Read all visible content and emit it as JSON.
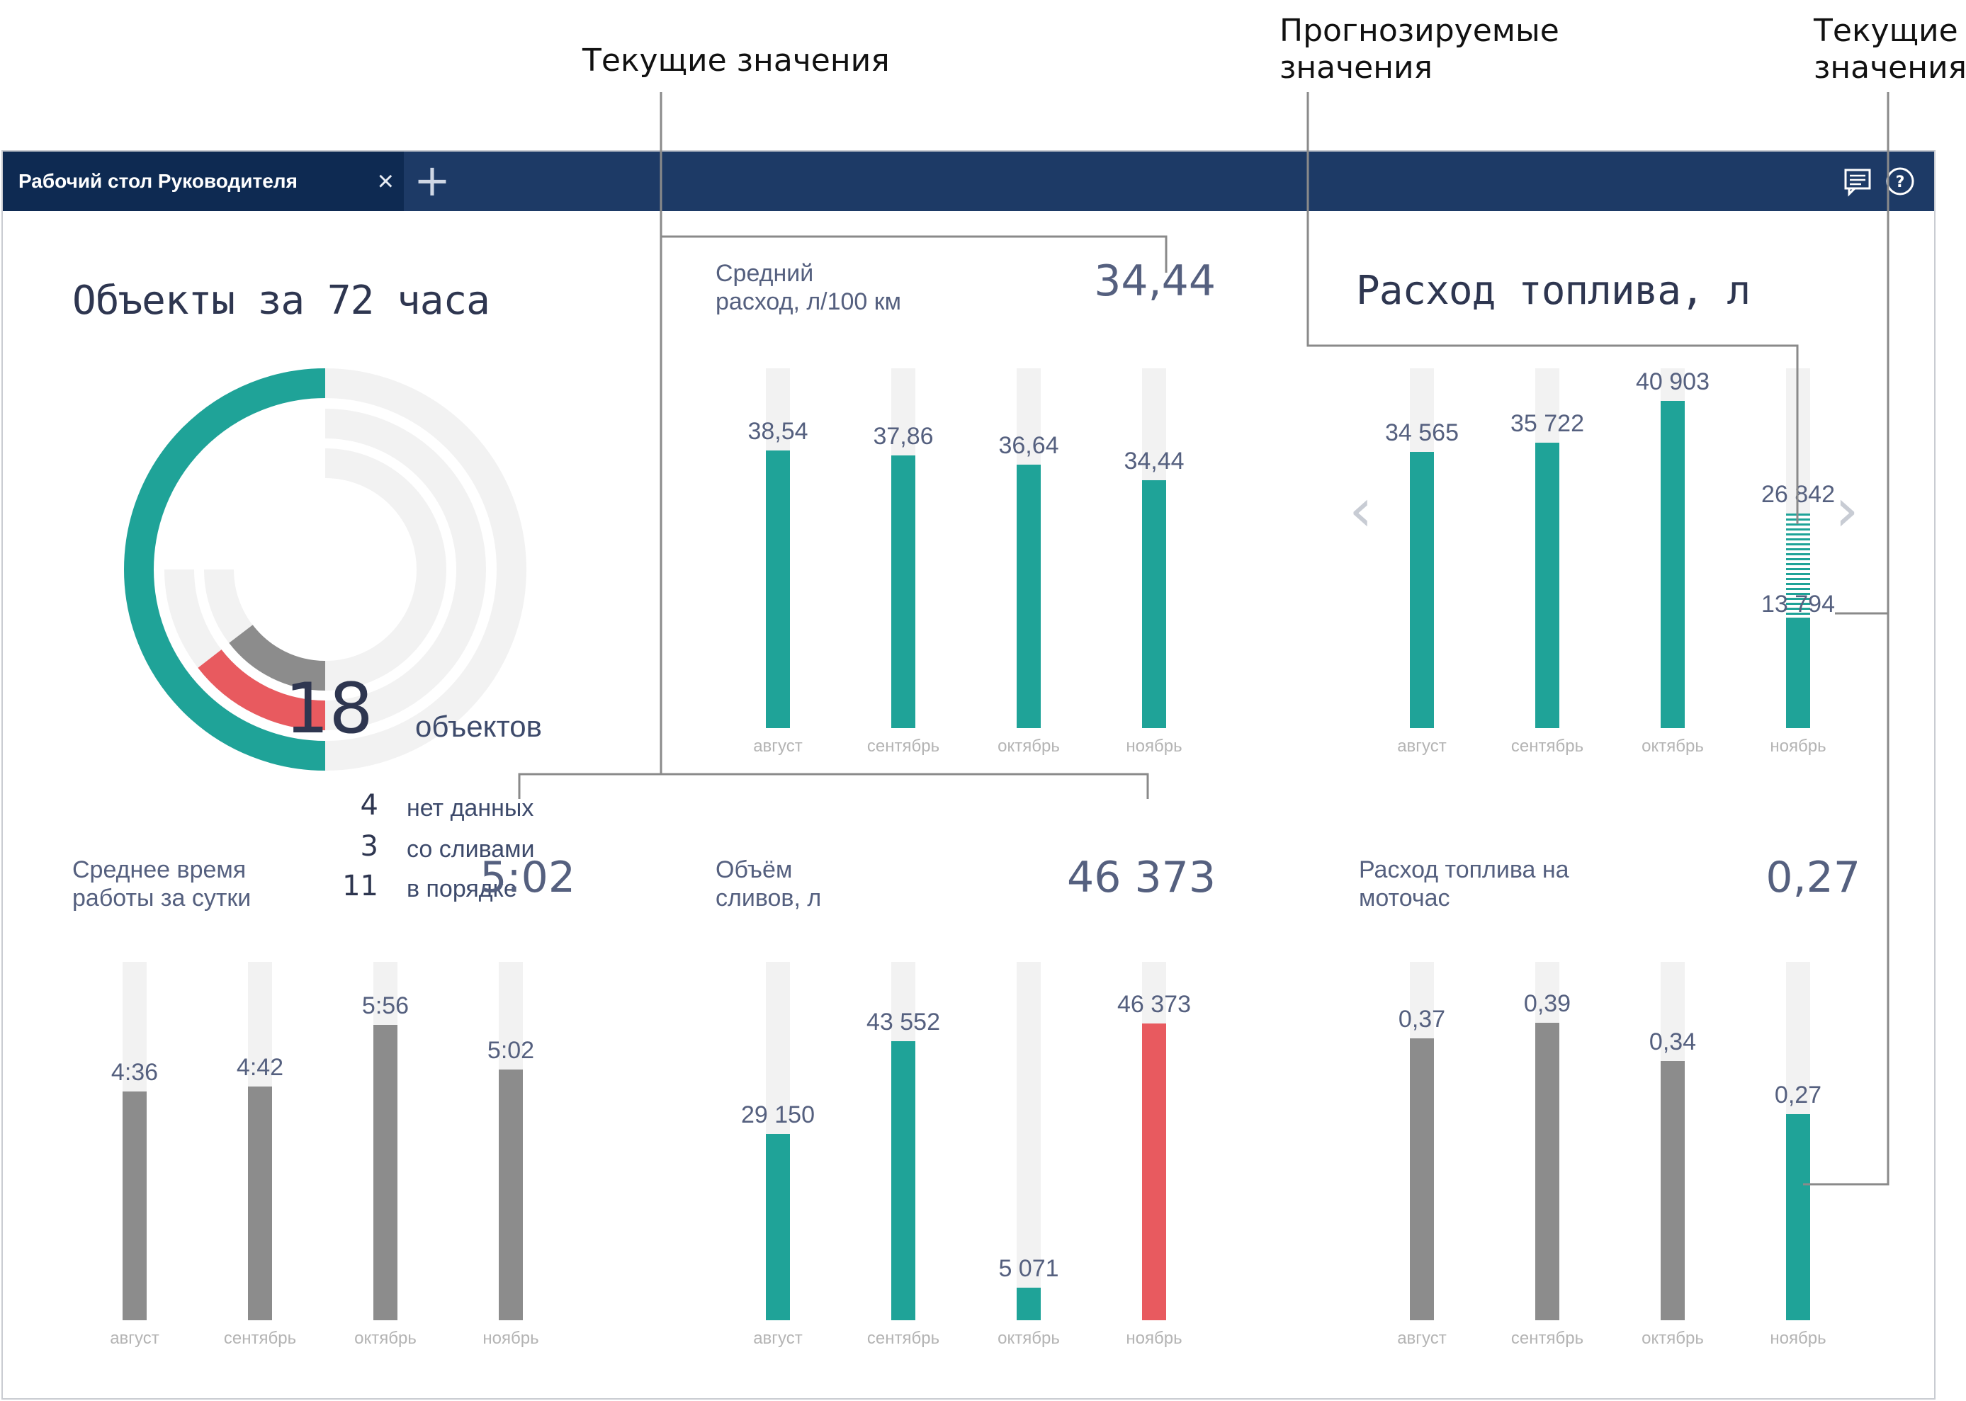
{
  "annotations": {
    "current_values_top": "Текущие значения",
    "forecast_values": "Прогнозируемые\nзначения",
    "current_values_right": "Текущие\nзначения"
  },
  "tabbar": {
    "tab_label": "Рабочий стол Руководителя",
    "close_glyph": "×",
    "add_glyph": "+",
    "icons": [
      "message-icon",
      "help-icon"
    ]
  },
  "objects_widget": {
    "title": "Объекты за 72 часа",
    "total": "18",
    "total_label": "объектов",
    "legend": [
      {
        "count": "4",
        "label": "нет данных",
        "color": "#8c8c8c"
      },
      {
        "count": "3",
        "label": "со сливами",
        "color": "#e85a5f"
      },
      {
        "count": "11",
        "label": "в порядке",
        "color": "#1fa398"
      }
    ]
  },
  "avg_consumption": {
    "title": "Средний\nрасход, л/100 км",
    "value": "34,44",
    "chart_data": {
      "type": "bar",
      "categories": [
        "август",
        "сентябрь",
        "октябрь",
        "ноябрь"
      ],
      "values": [
        38.54,
        37.86,
        36.64,
        34.44
      ],
      "labels": [
        "38,54",
        "37,86",
        "36,64",
        "34,44"
      ],
      "colors": [
        "#1fa398",
        "#1fa398",
        "#1fa398",
        "#1fa398"
      ],
      "ylim": [
        0,
        50
      ]
    }
  },
  "fuel_consumption": {
    "title": "Расход топлива, л",
    "prev_glyph": "‹",
    "next_glyph": "›",
    "chart_data": {
      "type": "bar",
      "categories": [
        "август",
        "сентябрь",
        "октябрь",
        "ноябрь"
      ],
      "values": [
        34565,
        35722,
        40903,
        13794
      ],
      "labels": [
        "34 565",
        "35 722",
        "40 903",
        "13 794"
      ],
      "forecast": {
        "index": 3,
        "value": 26842,
        "label": "26 842"
      },
      "colors": [
        "#1fa398",
        "#1fa398",
        "#1fa398",
        "#1fa398"
      ],
      "ylim": [
        0,
        45000
      ]
    }
  },
  "avg_work_time": {
    "title": "Среднее время\nработы за сутки",
    "value": "5:02",
    "chart_data": {
      "type": "bar",
      "categories": [
        "август",
        "сентябрь",
        "октябрь",
        "ноябрь"
      ],
      "values": [
        276,
        282,
        356,
        302
      ],
      "labels": [
        "4:36",
        "4:42",
        "5:56",
        "5:02"
      ],
      "colors": [
        "#8c8c8c",
        "#8c8c8c",
        "#8c8c8c",
        "#8c8c8c"
      ],
      "ylim": [
        0,
        432
      ]
    }
  },
  "drain_volume": {
    "title": "Объём\nсливов, л",
    "value": "46 373",
    "chart_data": {
      "type": "bar",
      "categories": [
        "август",
        "сентябрь",
        "октябрь",
        "ноябрь"
      ],
      "values": [
        29150,
        43552,
        5071,
        46373
      ],
      "labels": [
        "29 150",
        "43 552",
        "5 071",
        "46 373"
      ],
      "colors": [
        "#1fa398",
        "#1fa398",
        "#1fa398",
        "#e85a5f"
      ],
      "ylim": [
        0,
        56000
      ]
    }
  },
  "fuel_per_hour": {
    "title": "Расход топлива на\nмоточас",
    "value": "0,27",
    "chart_data": {
      "type": "bar",
      "categories": [
        "август",
        "сентябрь",
        "октябрь",
        "ноябрь"
      ],
      "values": [
        0.37,
        0.39,
        0.34,
        0.27
      ],
      "labels": [
        "0,37",
        "0,39",
        "0,34",
        "0,27"
      ],
      "colors": [
        "#8c8c8c",
        "#8c8c8c",
        "#8c8c8c",
        "#1fa398"
      ],
      "ylim": [
        0,
        0.47
      ]
    }
  }
}
